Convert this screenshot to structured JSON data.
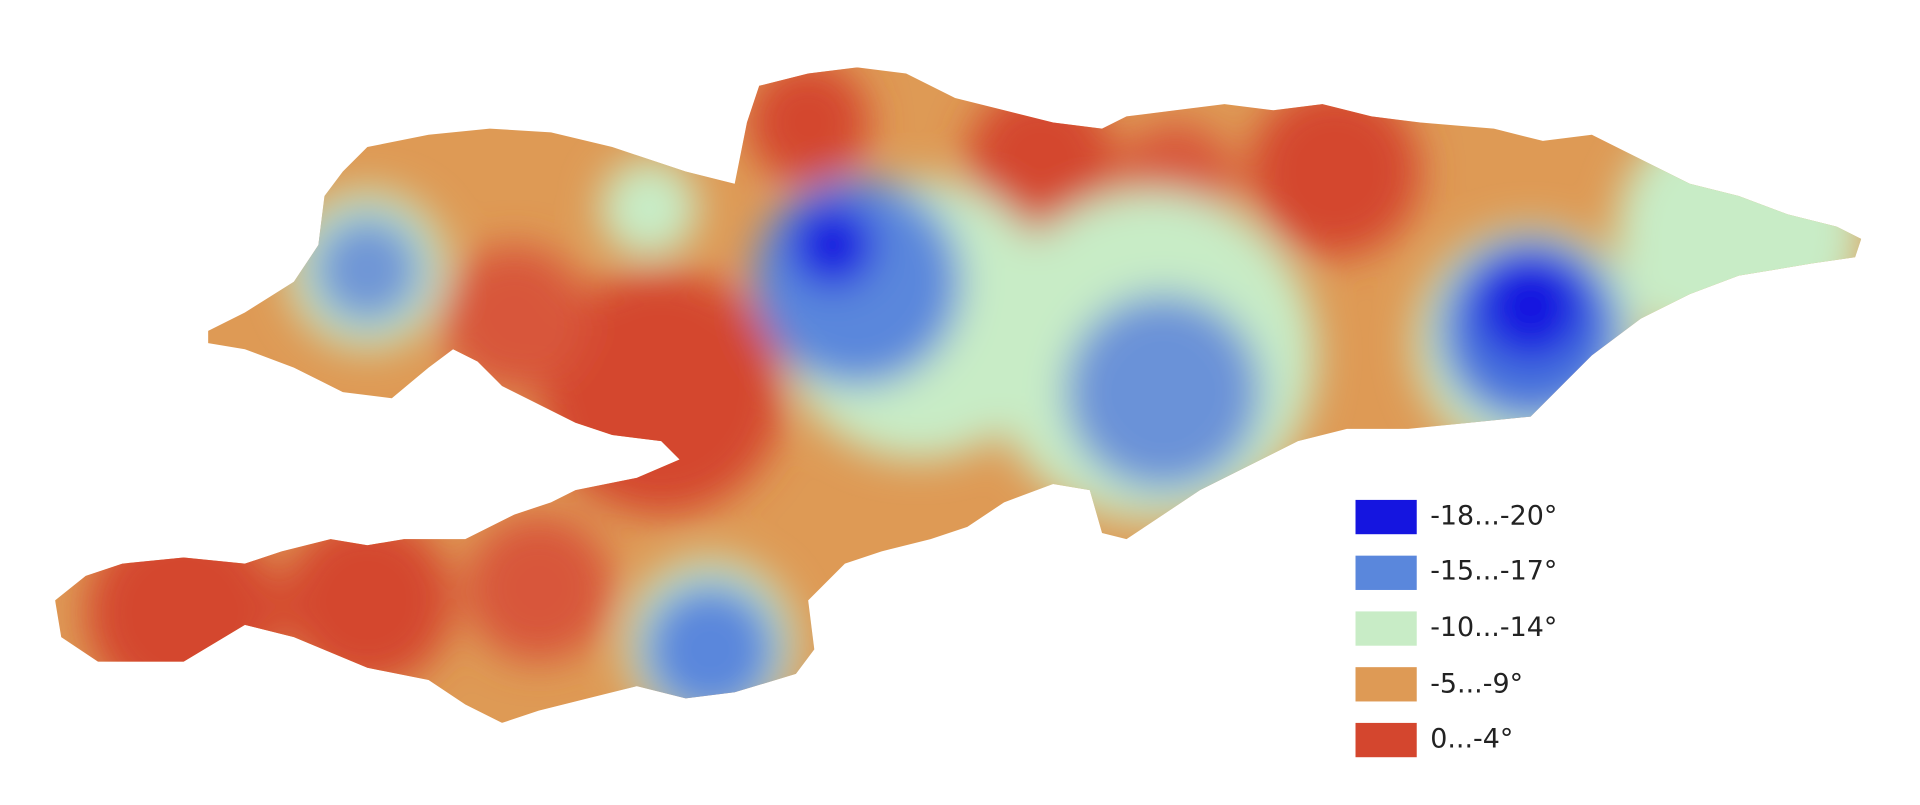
{
  "legend": {
    "items": [
      {
        "label": "-18...-20°",
        "color": "#1515e0"
      },
      {
        "label": "-15...-17°",
        "color": "#5a87dc"
      },
      {
        "label": "-10...-14°",
        "color": "#c8ecc6"
      },
      {
        "label": "-5...-9°",
        "color": "#de9a55"
      },
      {
        "label": "0...-4°",
        "color": "#d4462e"
      }
    ]
  }
}
